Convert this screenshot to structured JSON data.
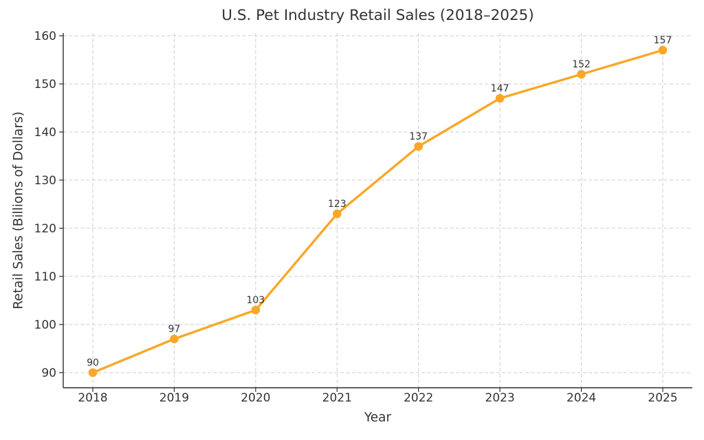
{
  "chart_data": {
    "type": "line",
    "title": "U.S. Pet Industry Retail Sales (2018–2025)",
    "xlabel": "Year",
    "ylabel": "Retail Sales (Billions of Dollars)",
    "categories": [
      "2018",
      "2019",
      "2020",
      "2021",
      "2022",
      "2023",
      "2024",
      "2025"
    ],
    "series": [
      {
        "name": "Retail Sales",
        "values": [
          90,
          97,
          103,
          123,
          137,
          147,
          152,
          157
        ]
      }
    ],
    "point_labels": [
      "90",
      "97",
      "103",
      "123",
      "137",
      "147",
      "152",
      "157"
    ],
    "yticks": [
      90,
      100,
      110,
      120,
      130,
      140,
      150,
      160
    ],
    "ylim": [
      87,
      161
    ],
    "grid": true,
    "grid_style": "dashed",
    "legend": false,
    "line_color": "#FAA728",
    "marker": "circle",
    "marker_color": "#FAA728",
    "grid_color": "#cccccc",
    "spine_color": "#2b2b2b",
    "text_color": "#333333",
    "background": "#ffffff"
  }
}
